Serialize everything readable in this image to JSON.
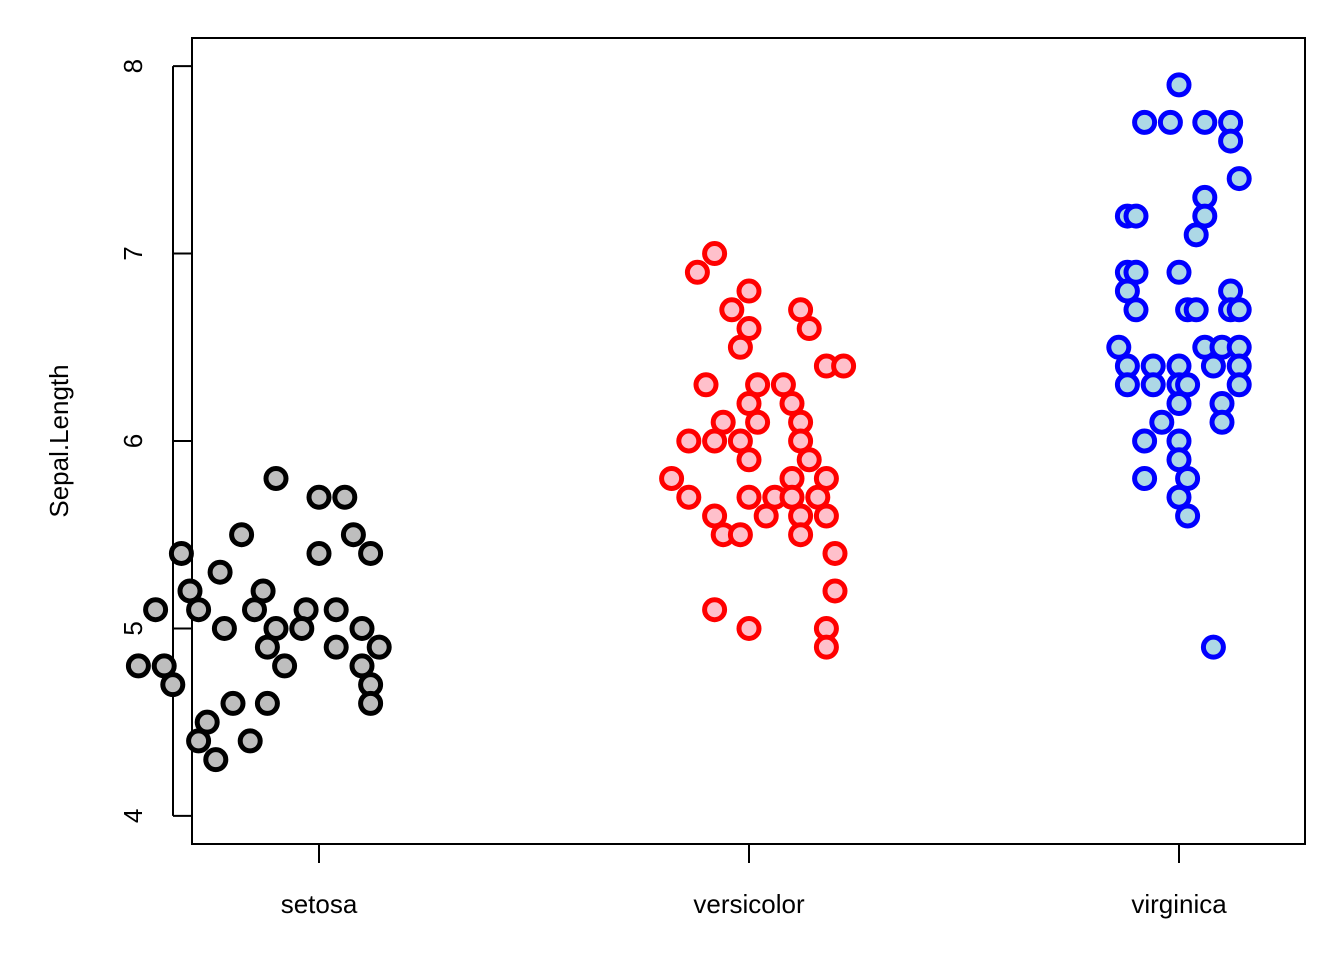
{
  "chart_data": {
    "type": "scatter",
    "title": "",
    "xlabel": "",
    "ylabel": "Sepal.Length",
    "categories": [
      "setosa",
      "versicolor",
      "virginica"
    ],
    "y_ticks": [
      "4",
      "5",
      "6",
      "7",
      "8"
    ],
    "ylim": [
      3.85,
      8.15
    ],
    "grid": false,
    "legend": "none",
    "jitter": true,
    "series": [
      {
        "category": "setosa",
        "stroke": "#000000",
        "fill": "#bebebe",
        "points": [
          {
            "x": 0.9,
            "y": 5.8
          },
          {
            "x": 0.82,
            "y": 5.5
          },
          {
            "x": 0.68,
            "y": 5.4
          },
          {
            "x": 0.77,
            "y": 5.3
          },
          {
            "x": 0.7,
            "y": 5.2
          },
          {
            "x": 0.87,
            "y": 5.2
          },
          {
            "x": 0.62,
            "y": 5.1
          },
          {
            "x": 0.72,
            "y": 5.1
          },
          {
            "x": 0.85,
            "y": 5.1
          },
          {
            "x": 0.97,
            "y": 5.1
          },
          {
            "x": 0.78,
            "y": 5.0
          },
          {
            "x": 0.9,
            "y": 5.0
          },
          {
            "x": 1.1,
            "y": 5.0
          },
          {
            "x": 0.88,
            "y": 4.9
          },
          {
            "x": 1.04,
            "y": 4.9
          },
          {
            "x": 1.14,
            "y": 4.9
          },
          {
            "x": 0.58,
            "y": 4.8
          },
          {
            "x": 0.64,
            "y": 4.8
          },
          {
            "x": 0.92,
            "y": 4.8
          },
          {
            "x": 1.1,
            "y": 4.8
          },
          {
            "x": 0.66,
            "y": 4.7
          },
          {
            "x": 1.12,
            "y": 4.7
          },
          {
            "x": 0.8,
            "y": 4.6
          },
          {
            "x": 0.88,
            "y": 4.6
          },
          {
            "x": 1.12,
            "y": 4.6
          },
          {
            "x": 0.74,
            "y": 4.5
          },
          {
            "x": 0.72,
            "y": 4.4
          },
          {
            "x": 0.84,
            "y": 4.4
          },
          {
            "x": 0.76,
            "y": 4.3
          },
          {
            "x": 1.0,
            "y": 5.7
          },
          {
            "x": 1.06,
            "y": 5.7
          },
          {
            "x": 1.0,
            "y": 5.4
          },
          {
            "x": 1.12,
            "y": 5.4
          },
          {
            "x": 1.08,
            "y": 5.5
          },
          {
            "x": 1.04,
            "y": 5.1
          },
          {
            "x": 0.96,
            "y": 5.0
          }
        ]
      },
      {
        "category": "versicolor",
        "stroke": "#ff0000",
        "fill": "#ffc0cb",
        "points": [
          {
            "x": 1.92,
            "y": 7.0
          },
          {
            "x": 1.88,
            "y": 6.9
          },
          {
            "x": 2.0,
            "y": 6.8
          },
          {
            "x": 1.96,
            "y": 6.7
          },
          {
            "x": 2.12,
            "y": 6.7
          },
          {
            "x": 2.0,
            "y": 6.6
          },
          {
            "x": 2.14,
            "y": 6.6
          },
          {
            "x": 1.98,
            "y": 6.5
          },
          {
            "x": 2.18,
            "y": 6.4
          },
          {
            "x": 2.22,
            "y": 6.4
          },
          {
            "x": 1.9,
            "y": 6.3
          },
          {
            "x": 2.02,
            "y": 6.3
          },
          {
            "x": 2.08,
            "y": 6.3
          },
          {
            "x": 2.0,
            "y": 6.2
          },
          {
            "x": 2.1,
            "y": 6.2
          },
          {
            "x": 1.94,
            "y": 6.1
          },
          {
            "x": 2.02,
            "y": 6.1
          },
          {
            "x": 2.12,
            "y": 6.1
          },
          {
            "x": 1.86,
            "y": 6.0
          },
          {
            "x": 1.92,
            "y": 6.0
          },
          {
            "x": 1.98,
            "y": 6.0
          },
          {
            "x": 2.12,
            "y": 6.0
          },
          {
            "x": 2.0,
            "y": 5.9
          },
          {
            "x": 2.14,
            "y": 5.9
          },
          {
            "x": 1.82,
            "y": 5.8
          },
          {
            "x": 2.1,
            "y": 5.8
          },
          {
            "x": 2.18,
            "y": 5.8
          },
          {
            "x": 1.86,
            "y": 5.7
          },
          {
            "x": 2.0,
            "y": 5.7
          },
          {
            "x": 2.06,
            "y": 5.7
          },
          {
            "x": 2.1,
            "y": 5.7
          },
          {
            "x": 2.16,
            "y": 5.7
          },
          {
            "x": 1.92,
            "y": 5.6
          },
          {
            "x": 2.04,
            "y": 5.6
          },
          {
            "x": 2.12,
            "y": 5.6
          },
          {
            "x": 2.18,
            "y": 5.6
          },
          {
            "x": 1.94,
            "y": 5.5
          },
          {
            "x": 1.98,
            "y": 5.5
          },
          {
            "x": 2.12,
            "y": 5.5
          },
          {
            "x": 2.2,
            "y": 5.4
          },
          {
            "x": 2.2,
            "y": 5.2
          },
          {
            "x": 1.92,
            "y": 5.1
          },
          {
            "x": 2.0,
            "y": 5.0
          },
          {
            "x": 2.18,
            "y": 5.0
          },
          {
            "x": 2.18,
            "y": 4.9
          }
        ]
      },
      {
        "category": "virginica",
        "stroke": "#0000ff",
        "fill": "#add8e6",
        "points": [
          {
            "x": 3.0,
            "y": 7.9
          },
          {
            "x": 2.92,
            "y": 7.7
          },
          {
            "x": 2.98,
            "y": 7.7
          },
          {
            "x": 3.06,
            "y": 7.7
          },
          {
            "x": 3.12,
            "y": 7.7
          },
          {
            "x": 3.12,
            "y": 7.6
          },
          {
            "x": 3.14,
            "y": 7.4
          },
          {
            "x": 3.06,
            "y": 7.3
          },
          {
            "x": 2.88,
            "y": 7.2
          },
          {
            "x": 2.9,
            "y": 7.2
          },
          {
            "x": 3.06,
            "y": 7.2
          },
          {
            "x": 3.04,
            "y": 7.1
          },
          {
            "x": 2.88,
            "y": 6.9
          },
          {
            "x": 2.9,
            "y": 6.9
          },
          {
            "x": 3.0,
            "y": 6.9
          },
          {
            "x": 2.88,
            "y": 6.8
          },
          {
            "x": 3.12,
            "y": 6.8
          },
          {
            "x": 2.9,
            "y": 6.7
          },
          {
            "x": 3.02,
            "y": 6.7
          },
          {
            "x": 3.04,
            "y": 6.7
          },
          {
            "x": 3.12,
            "y": 6.7
          },
          {
            "x": 3.14,
            "y": 6.7
          },
          {
            "x": 2.86,
            "y": 6.5
          },
          {
            "x": 3.06,
            "y": 6.5
          },
          {
            "x": 3.1,
            "y": 6.5
          },
          {
            "x": 3.14,
            "y": 6.5
          },
          {
            "x": 2.88,
            "y": 6.4
          },
          {
            "x": 2.94,
            "y": 6.4
          },
          {
            "x": 3.0,
            "y": 6.4
          },
          {
            "x": 3.08,
            "y": 6.4
          },
          {
            "x": 3.14,
            "y": 6.4
          },
          {
            "x": 2.88,
            "y": 6.3
          },
          {
            "x": 2.94,
            "y": 6.3
          },
          {
            "x": 3.0,
            "y": 6.3
          },
          {
            "x": 3.02,
            "y": 6.3
          },
          {
            "x": 3.14,
            "y": 6.3
          },
          {
            "x": 3.0,
            "y": 6.2
          },
          {
            "x": 3.1,
            "y": 6.2
          },
          {
            "x": 2.96,
            "y": 6.1
          },
          {
            "x": 3.1,
            "y": 6.1
          },
          {
            "x": 2.92,
            "y": 6.0
          },
          {
            "x": 3.0,
            "y": 6.0
          },
          {
            "x": 3.0,
            "y": 5.9
          },
          {
            "x": 2.92,
            "y": 5.8
          },
          {
            "x": 3.02,
            "y": 5.8
          },
          {
            "x": 3.0,
            "y": 5.7
          },
          {
            "x": 3.02,
            "y": 5.6
          },
          {
            "x": 3.08,
            "y": 4.9
          }
        ]
      }
    ]
  }
}
